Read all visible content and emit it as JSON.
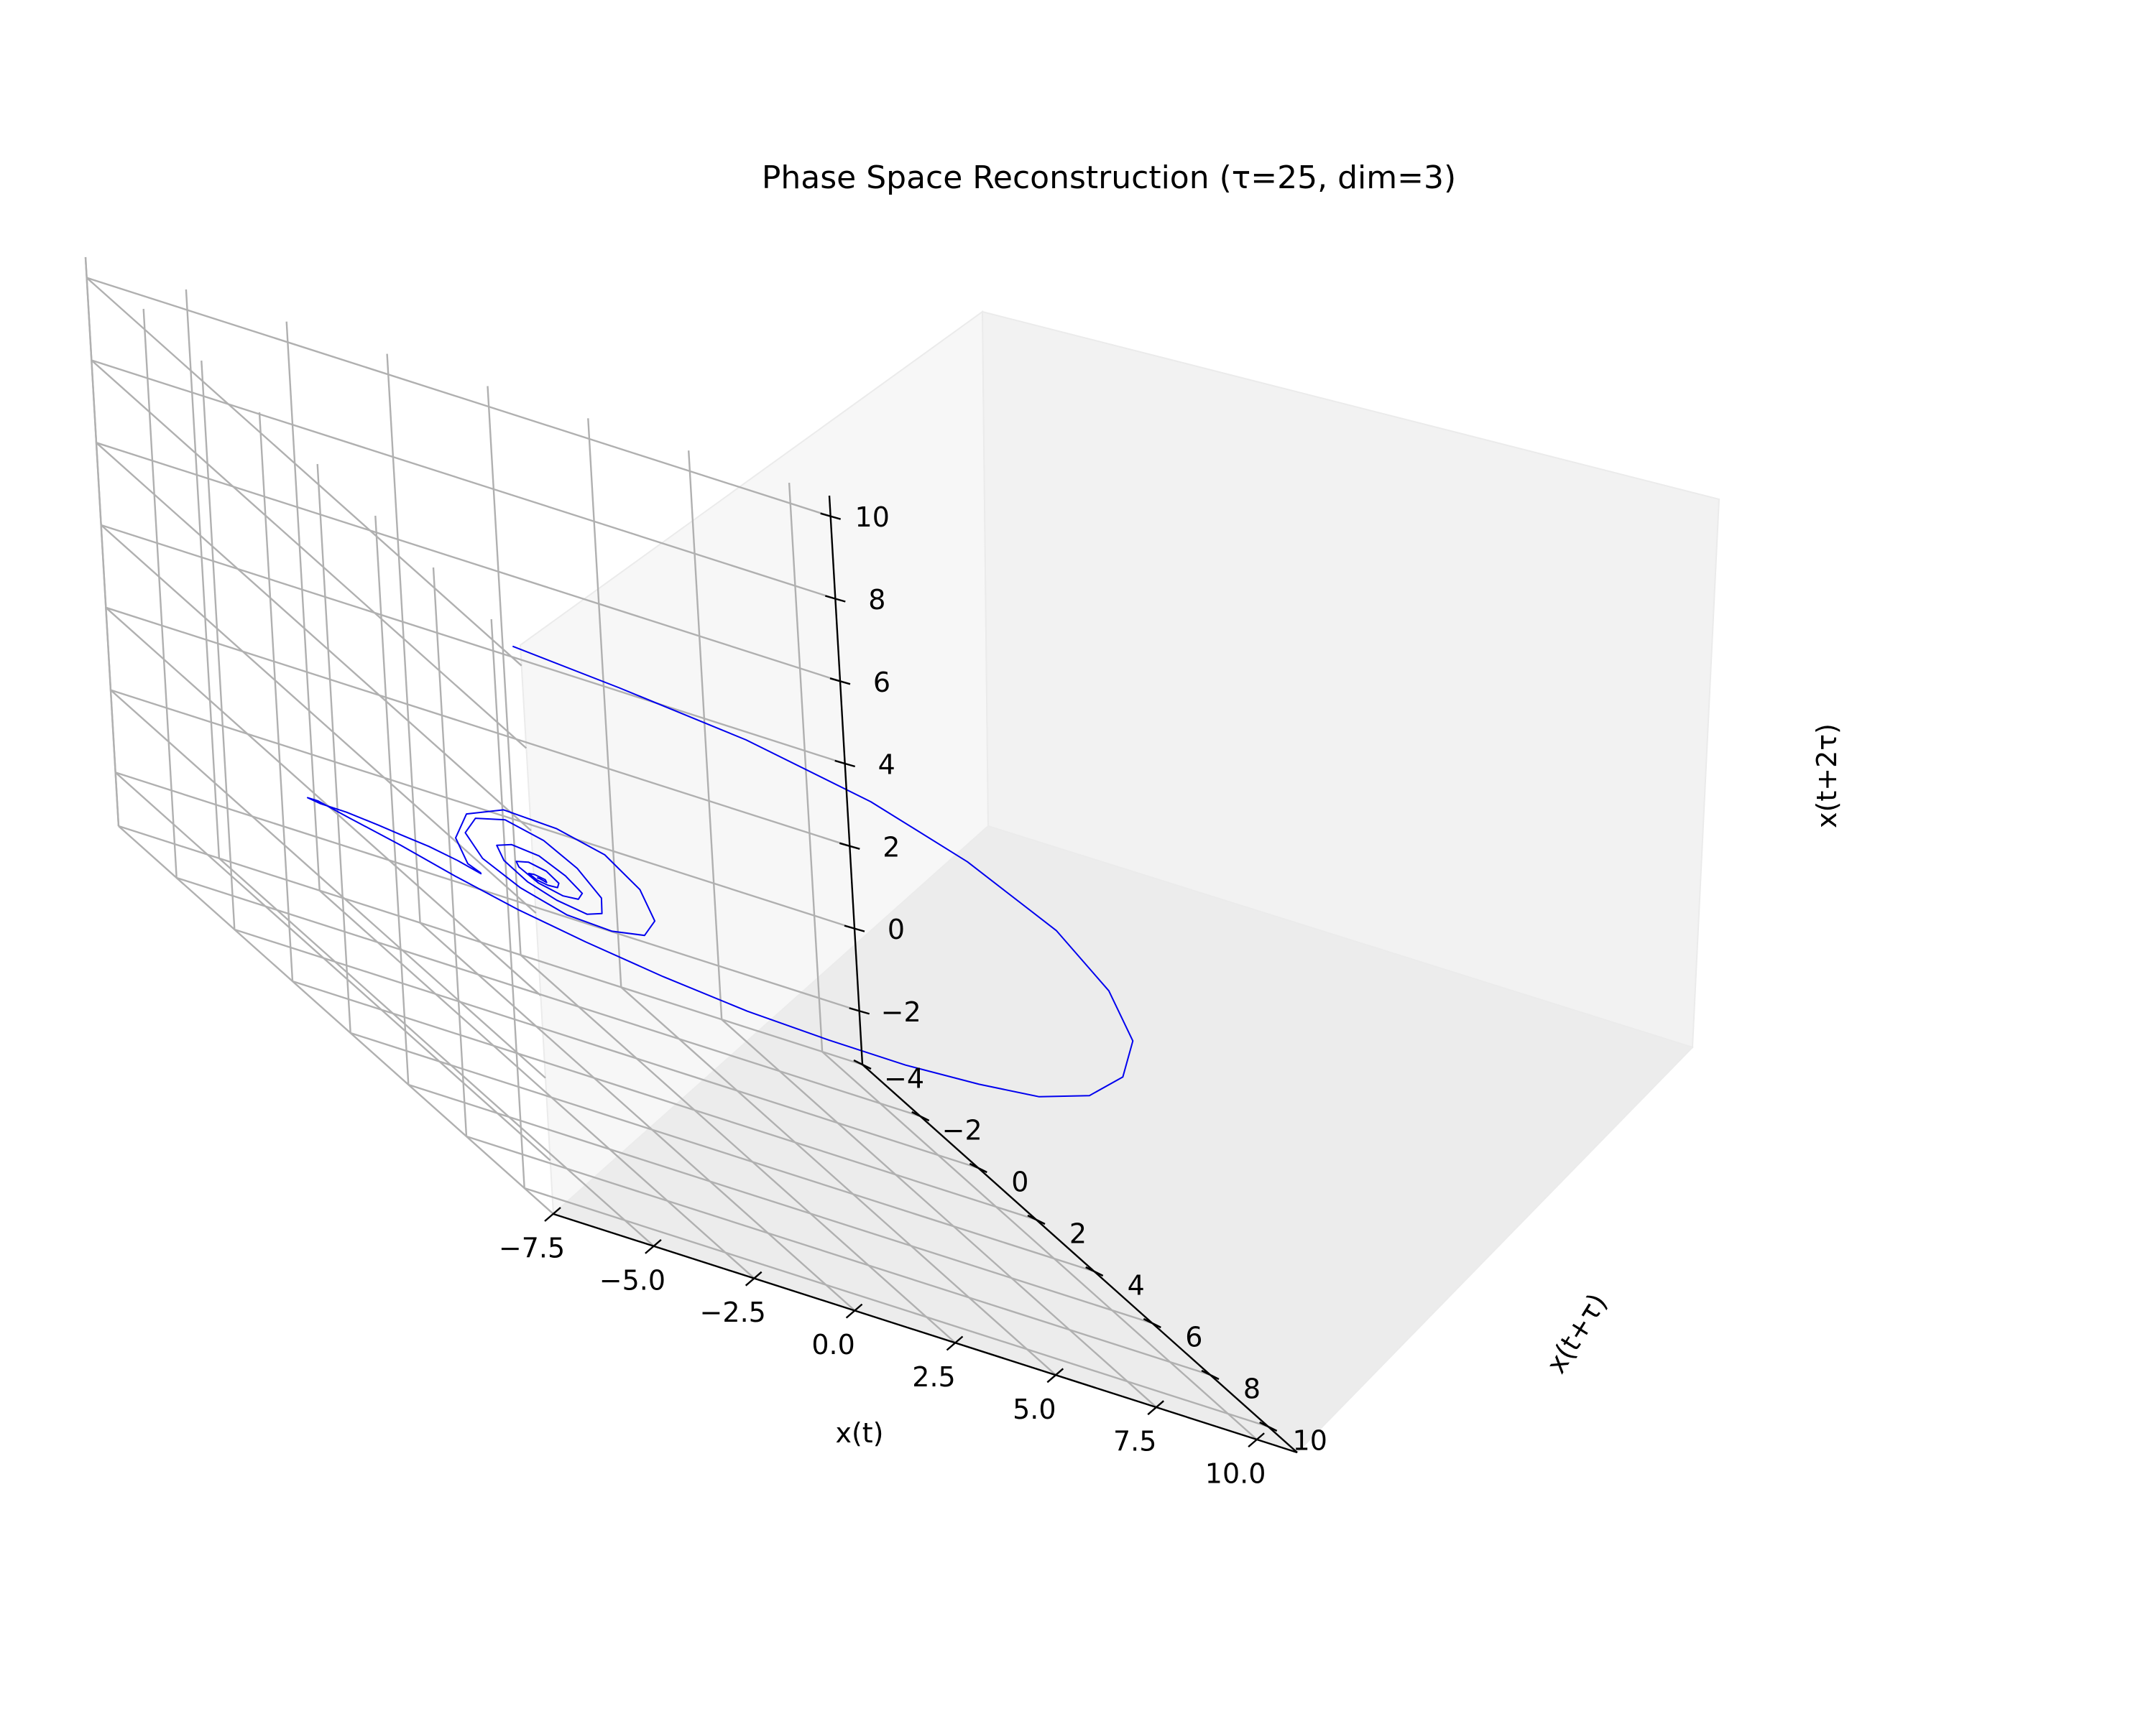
{
  "chart_data": {
    "type": "line3d",
    "title": "Phase Space Reconstruction (τ=25, dim=3)",
    "xlabel": "x(t)",
    "ylabel": "x(t+τ)",
    "zlabel": "x(t+2τ)",
    "xlim": [
      -7.5,
      11
    ],
    "ylim": [
      -4,
      11
    ],
    "zlim": [
      -3.3,
      10.5
    ],
    "xticks": [
      "−7.5",
      "−5.0",
      "−2.5",
      "0.0",
      "2.5",
      "5.0",
      "7.5",
      "10.0"
    ],
    "xtick_values": [
      -7.5,
      -5.0,
      -2.5,
      0.0,
      2.5,
      5.0,
      7.5,
      10.0
    ],
    "yticks": [
      "−4",
      "−2",
      "0",
      "2",
      "4",
      "6",
      "8",
      "10"
    ],
    "ytick_values": [
      -4,
      -2,
      0,
      2,
      4,
      6,
      8,
      10
    ],
    "zticks": [
      "−2",
      "0",
      "2",
      "4",
      "6",
      "8",
      "10"
    ],
    "ztick_values": [
      -2,
      0,
      2,
      4,
      6,
      8,
      10
    ],
    "grid": true,
    "series": [
      {
        "color": "#0000ee",
        "note": "single trajectory: starts near (−7, 10, 10), swings around through large x, then spirals inward toward the origin",
        "points": [
          [
            -7.0,
            10.0,
            10.0
          ],
          [
            -4.5,
            10.2,
            9.9
          ],
          [
            -1.5,
            10.4,
            9.7
          ],
          [
            1.5,
            10.5,
            9.2
          ],
          [
            4.0,
            10.3,
            8.4
          ],
          [
            6.5,
            9.8,
            7.2
          ],
          [
            8.3,
            9.0,
            5.8
          ],
          [
            9.6,
            7.9,
            4.3
          ],
          [
            10.2,
            6.6,
            2.8
          ],
          [
            10.3,
            5.2,
            1.5
          ],
          [
            10.0,
            3.8,
            0.5
          ],
          [
            9.4,
            2.5,
            -0.2
          ],
          [
            8.4,
            1.3,
            -0.8
          ],
          [
            7.2,
            0.3,
            -1.2
          ],
          [
            5.8,
            -0.6,
            -1.5
          ],
          [
            4.2,
            -1.3,
            -1.6
          ],
          [
            2.7,
            -1.9,
            -1.6
          ],
          [
            1.3,
            -2.3,
            -1.5
          ],
          [
            0.0,
            -2.6,
            -1.3
          ],
          [
            -1.3,
            -2.7,
            -1.0
          ],
          [
            -2.6,
            -2.6,
            -0.7
          ],
          [
            -3.6,
            -2.3,
            -0.4
          ],
          [
            -4.2,
            -1.8,
            -0.2
          ],
          [
            -4.3,
            -1.2,
            0.0
          ],
          [
            -4.0,
            -0.7,
            0.2
          ],
          [
            -3.5,
            -0.3,
            0.3
          ],
          [
            -3.2,
            0.1,
            0.4
          ],
          [
            -2.8,
            0.5,
            0.5
          ],
          [
            -2.3,
            0.8,
            0.5
          ],
          [
            -1.8,
            0.9,
            0.4
          ],
          [
            -1.6,
            0.6,
            0.3
          ],
          [
            -1.7,
            0.3,
            0.3
          ],
          [
            -1.9,
            0.2,
            0.8
          ],
          [
            -1.8,
            0.5,
            1.6
          ],
          [
            -1.2,
            1.0,
            2.2
          ],
          [
            -0.3,
            1.6,
            2.4
          ],
          [
            0.6,
            2.0,
            2.3
          ],
          [
            1.3,
            2.2,
            1.8
          ],
          [
            1.7,
            2.1,
            1.1
          ],
          [
            1.7,
            1.7,
            0.5
          ],
          [
            1.3,
            1.1,
            0.1
          ],
          [
            0.6,
            0.5,
            -0.1
          ],
          [
            -0.2,
            0.0,
            0.0
          ],
          [
            -0.9,
            -0.3,
            0.3
          ],
          [
            -1.3,
            -0.3,
            0.8
          ],
          [
            -1.3,
            0.1,
            1.4
          ],
          [
            -0.9,
            0.6,
            1.8
          ],
          [
            -0.3,
            1.1,
            1.8
          ],
          [
            0.3,
            1.4,
            1.5
          ],
          [
            0.8,
            1.5,
            1.0
          ],
          [
            1.0,
            1.2,
            0.5
          ],
          [
            0.9,
            0.8,
            0.2
          ],
          [
            0.5,
            0.3,
            0.1
          ],
          [
            0.0,
            0.0,
            0.2
          ],
          [
            -0.5,
            -0.1,
            0.5
          ],
          [
            -0.8,
            0.1,
            0.9
          ],
          [
            -0.7,
            0.5,
            1.2
          ],
          [
            -0.3,
            0.9,
            1.3
          ],
          [
            0.2,
            1.1,
            1.1
          ],
          [
            0.6,
            1.1,
            0.8
          ],
          [
            0.7,
            0.8,
            0.5
          ],
          [
            0.6,
            0.4,
            0.3
          ],
          [
            0.2,
            0.1,
            0.3
          ],
          [
            -0.2,
            0.0,
            0.5
          ],
          [
            -0.4,
            0.2,
            0.7
          ],
          [
            -0.3,
            0.5,
            0.9
          ],
          [
            0.0,
            0.7,
            0.9
          ],
          [
            0.3,
            0.7,
            0.7
          ],
          [
            0.4,
            0.5,
            0.5
          ],
          [
            0.3,
            0.3,
            0.4
          ],
          [
            0.1,
            0.2,
            0.4
          ],
          [
            -0.1,
            0.2,
            0.5
          ],
          [
            -0.1,
            0.4,
            0.6
          ],
          [
            0.1,
            0.5,
            0.6
          ],
          [
            0.2,
            0.4,
            0.5
          ],
          [
            0.1,
            0.3,
            0.5
          ],
          [
            0.0,
            0.35,
            0.52
          ]
        ]
      }
    ]
  }
}
